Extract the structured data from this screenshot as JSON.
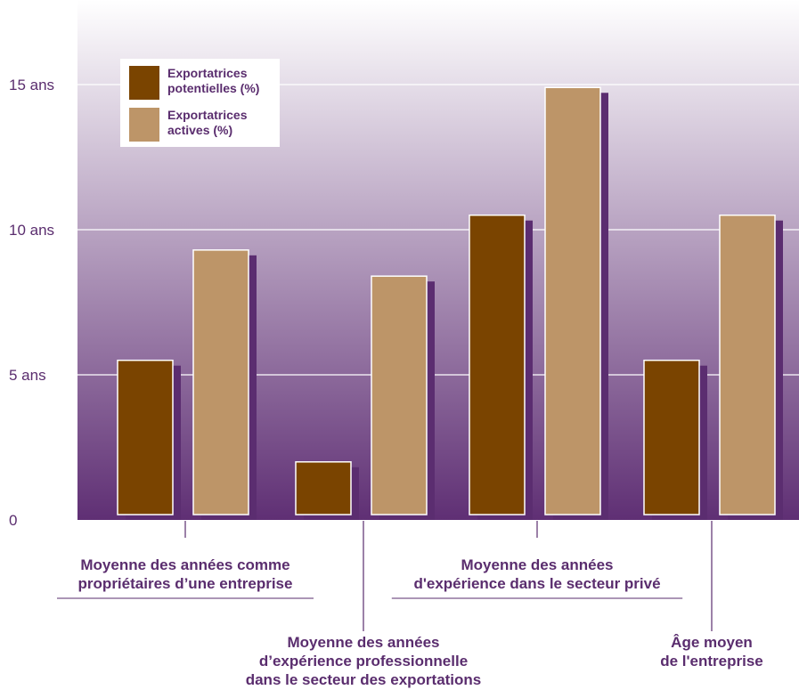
{
  "chart_data": {
    "type": "bar",
    "ylim": [
      0,
      15
    ],
    "y_ticks": [
      {
        "value": 0,
        "label": "0"
      },
      {
        "value": 5,
        "label": "5  ans"
      },
      {
        "value": 10,
        "label": "10  ans"
      },
      {
        "value": 15,
        "label": "15  ans"
      }
    ],
    "legend_position": "top-left",
    "grid": true,
    "categories": [
      {
        "lines": [
          "Moyenne des années comme",
          "propriétaires d’une entreprise"
        ],
        "label_position": "upper"
      },
      {
        "lines": [
          "Moyenne des années",
          "d’expérience professionnelle",
          "dans le secteur des exportations"
        ],
        "label_position": "lower"
      },
      {
        "lines": [
          "Moyenne des années",
          "d'expérience dans le secteur privé"
        ],
        "label_position": "upper"
      },
      {
        "lines": [
          "Âge moyen",
          "de l'entreprise"
        ],
        "label_position": "lower"
      }
    ],
    "series": [
      {
        "name_lines": [
          "Exportatrices",
          "potentielles (%)"
        ],
        "color": "#7a4400",
        "values": [
          5.5,
          2.0,
          10.5,
          5.5
        ]
      },
      {
        "name_lines": [
          "Exportatrices",
          "actives (%)"
        ],
        "color": "#bd9568",
        "values": [
          9.3,
          8.4,
          14.9,
          10.5
        ]
      }
    ],
    "colors": {
      "plot_top": "#ffffff",
      "plot_bottom": "#5f2f74",
      "shadow": "#5b2d70",
      "text": "#5a2d6e"
    }
  }
}
